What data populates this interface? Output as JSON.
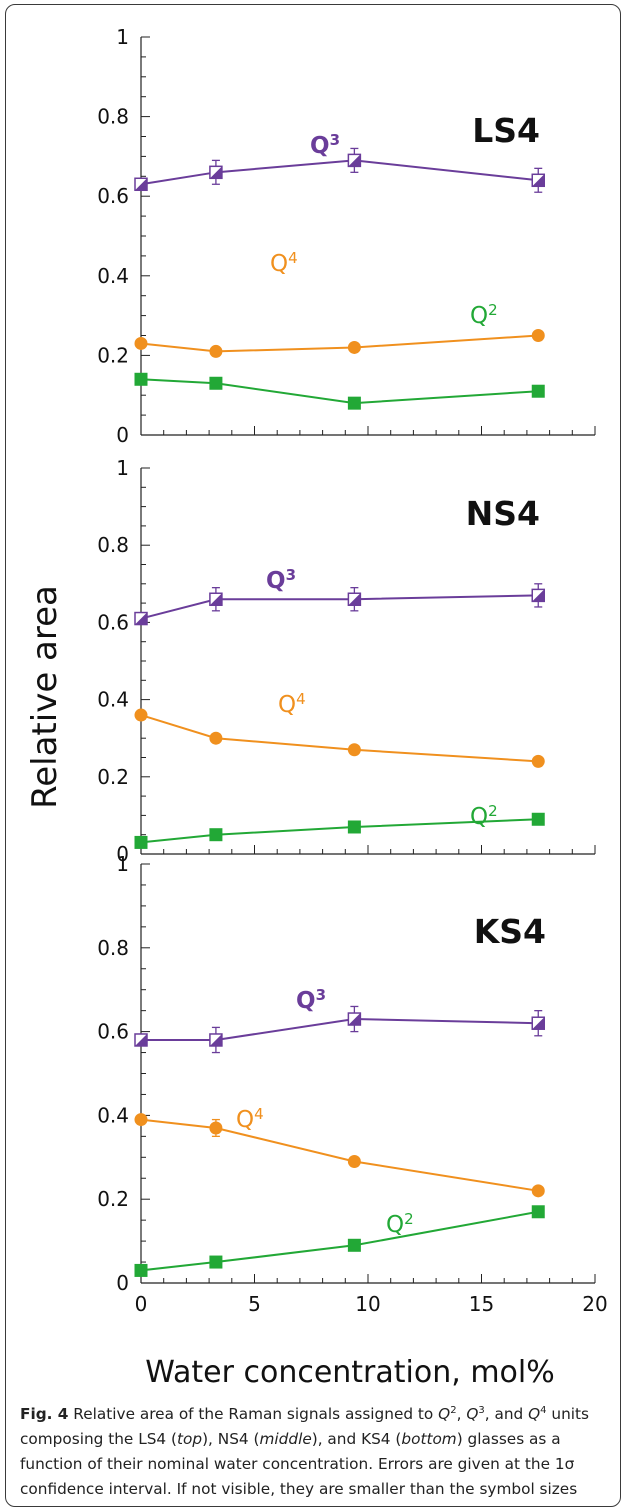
{
  "chart_data": [
    {
      "type": "line",
      "title": "LS4",
      "xlim": [
        0,
        20
      ],
      "ylim": [
        0,
        1
      ],
      "yticks": [
        "0",
        "0.2",
        "0.4",
        "0.6",
        "0.8",
        "1"
      ],
      "series": [
        {
          "name": "Q3",
          "color": "#6a3d9a",
          "x": [
            0,
            3.3,
            9.4,
            17.5
          ],
          "y": [
            0.63,
            0.66,
            0.69,
            0.64
          ],
          "err": [
            0,
            0.03,
            0.03,
            0.03
          ]
        },
        {
          "name": "Q4",
          "color": "#f0901e",
          "x": [
            0,
            3.3,
            9.4,
            17.5
          ],
          "y": [
            0.23,
            0.21,
            0.22,
            0.25
          ],
          "err": [
            0,
            0,
            0,
            0
          ]
        },
        {
          "name": "Q2",
          "color": "#22a836",
          "x": [
            0,
            3.3,
            9.4,
            17.5
          ],
          "y": [
            0.14,
            0.13,
            0.08,
            0.11
          ],
          "err": [
            0,
            0,
            0,
            0
          ]
        }
      ]
    },
    {
      "type": "line",
      "title": "NS4",
      "xlim": [
        0,
        20
      ],
      "ylim": [
        0,
        1
      ],
      "yticks": [
        "0",
        "0.2",
        "0.4",
        "0.6",
        "0.8",
        "1"
      ],
      "series": [
        {
          "name": "Q3",
          "color": "#6a3d9a",
          "x": [
            0,
            3.3,
            9.4,
            17.5
          ],
          "y": [
            0.61,
            0.66,
            0.66,
            0.67
          ],
          "err": [
            0,
            0.03,
            0.03,
            0.03
          ]
        },
        {
          "name": "Q4",
          "color": "#f0901e",
          "x": [
            0,
            3.3,
            9.4,
            17.5
          ],
          "y": [
            0.36,
            0.3,
            0.27,
            0.24
          ],
          "err": [
            0,
            0,
            0,
            0
          ]
        },
        {
          "name": "Q2",
          "color": "#22a836",
          "x": [
            0,
            3.3,
            9.4,
            17.5
          ],
          "y": [
            0.03,
            0.05,
            0.07,
            0.09
          ],
          "err": [
            0,
            0,
            0,
            0
          ]
        }
      ]
    },
    {
      "type": "line",
      "title": "KS4",
      "xlim": [
        0,
        20
      ],
      "ylim": [
        0,
        1
      ],
      "yticks": [
        "0",
        "0.2",
        "0.4",
        "0.6",
        "0.8",
        "1"
      ],
      "xticks": [
        "0",
        "5",
        "10",
        "15",
        "20"
      ],
      "series": [
        {
          "name": "Q3",
          "color": "#6a3d9a",
          "x": [
            0,
            3.3,
            9.4,
            17.5
          ],
          "y": [
            0.58,
            0.58,
            0.63,
            0.62
          ],
          "err": [
            0,
            0.03,
            0.03,
            0.03
          ]
        },
        {
          "name": "Q4",
          "color": "#f0901e",
          "x": [
            0,
            3.3,
            9.4,
            17.5
          ],
          "y": [
            0.39,
            0.37,
            0.29,
            0.22
          ],
          "err": [
            0,
            0.02,
            0,
            0
          ]
        },
        {
          "name": "Q2",
          "color": "#22a836",
          "x": [
            0,
            3.3,
            9.4,
            17.5
          ],
          "y": [
            0.03,
            0.05,
            0.09,
            0.17
          ],
          "err": [
            0,
            0,
            0,
            0.01
          ]
        }
      ]
    }
  ],
  "axes": {
    "xlabel": "Water concentration, mol%",
    "ylabel": "Relative area"
  },
  "labels": {
    "q_letter": "Q",
    "q3_sup": "3",
    "q4_sup": "4",
    "q2_sup": "2"
  },
  "caption": {
    "lead": "Fig. 4",
    "t1": " Relative area of the Raman signals assigned to ",
    "q": "Q",
    "sup2": "2",
    "sup3": "3",
    "sup4": "4",
    "sep1": ", ",
    "sep2": ", and ",
    "t2": " units composing the LS4 (",
    "top": "top",
    "t3": "), NS4 (",
    "middle": "middle",
    "t4": "), and KS4 (",
    "bottom": "bottom",
    "t5": ") glasses as a function of their nominal water concentration. Errors are given at the 1σ confidence interval. If not visible, they are smaller than the symbol sizes"
  }
}
